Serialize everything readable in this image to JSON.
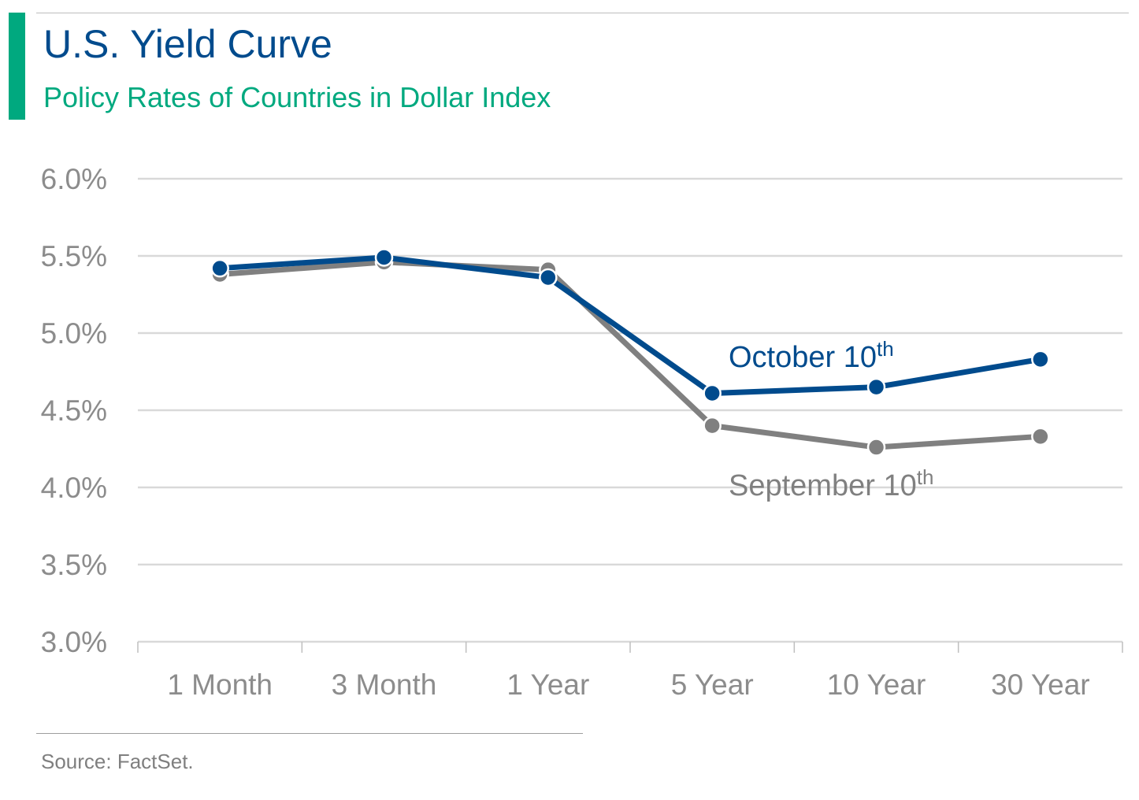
{
  "header": {
    "title": "U.S. Yield Curve",
    "subtitle": "Policy Rates of Countries in Dollar Index"
  },
  "footer": {
    "source": "Source: FactSet."
  },
  "colors": {
    "accent": "#00a97f",
    "title": "#004b8d",
    "october_series": "#004b8d",
    "september_series": "#808080",
    "grid": "#d9d9d9",
    "tick_text": "#8c8c8c"
  },
  "chart_data": {
    "type": "line",
    "title": "U.S. Yield Curve",
    "subtitle": "Policy Rates of Countries in Dollar Index",
    "categories": [
      "1 Month",
      "3 Month",
      "1 Year",
      "5 Year",
      "10 Year",
      "30 Year"
    ],
    "y_ticks": [
      "6.0%",
      "5.5%",
      "5.0%",
      "4.5%",
      "4.0%",
      "3.5%",
      "3.0%"
    ],
    "ylim": [
      3.0,
      6.0
    ],
    "y_unit": "%",
    "grid": true,
    "legend": "inline labels",
    "series": [
      {
        "name": "September 10th",
        "name_main": "September 10",
        "name_sup": "th",
        "color": "#808080",
        "values": [
          5.38,
          5.46,
          5.41,
          4.4,
          4.26,
          4.33
        ]
      },
      {
        "name": "October 10th",
        "name_main": "October 10",
        "name_sup": "th",
        "color": "#004b8d",
        "values": [
          5.42,
          5.49,
          5.36,
          4.61,
          4.65,
          4.83
        ]
      }
    ]
  }
}
